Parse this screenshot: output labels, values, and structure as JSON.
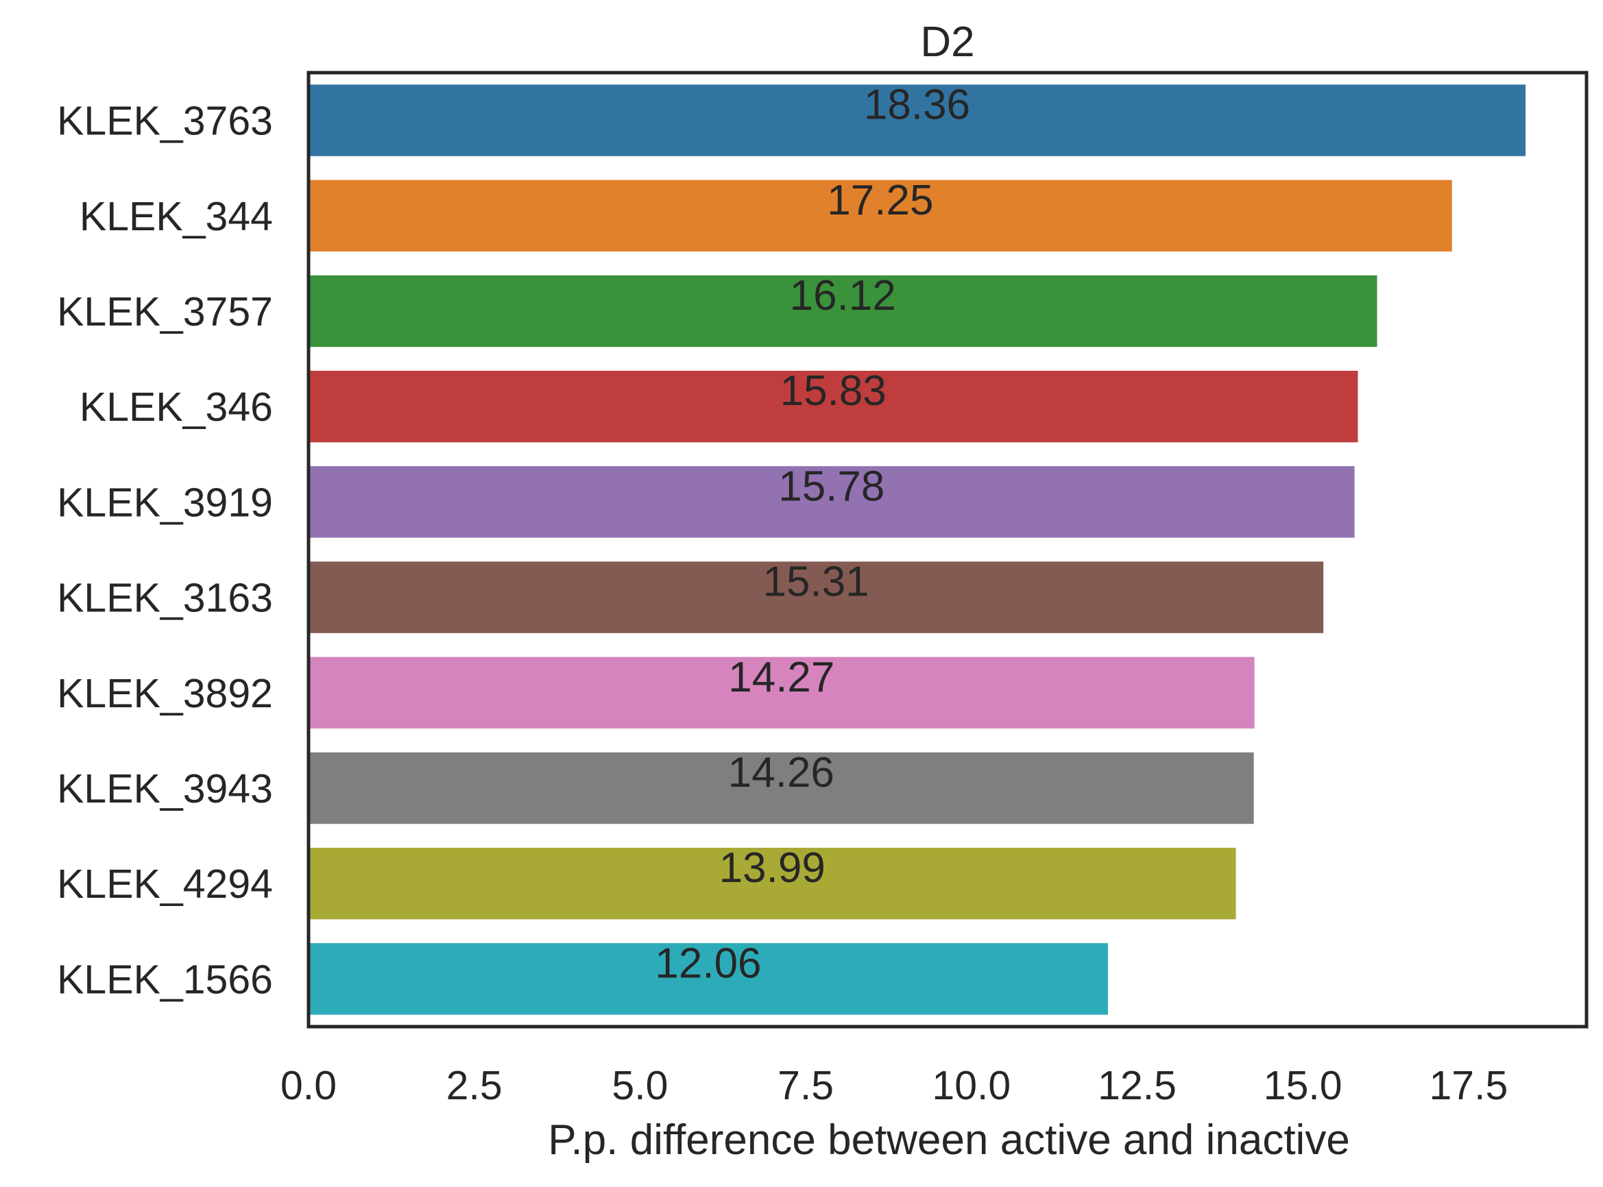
{
  "chart_data": {
    "type": "bar",
    "orientation": "horizontal",
    "title": "D2",
    "xlabel": "P.p. difference between active and inactive",
    "ylabel": "",
    "categories": [
      "KLEK_3763",
      "KLEK_344",
      "KLEK_3757",
      "KLEK_346",
      "KLEK_3919",
      "KLEK_3163",
      "KLEK_3892",
      "KLEK_3943",
      "KLEK_4294",
      "KLEK_1566"
    ],
    "values": [
      18.36,
      17.25,
      16.12,
      15.83,
      15.78,
      15.31,
      14.27,
      14.26,
      13.99,
      12.06
    ],
    "value_labels": [
      "18.36",
      "17.25",
      "16.12",
      "15.83",
      "15.78",
      "15.31",
      "14.27",
      "14.26",
      "13.99",
      "12.06"
    ],
    "colors": [
      "#3274a1",
      "#e1812c",
      "#3a923a",
      "#c03d3e",
      "#9372b2",
      "#845b53",
      "#d684bd",
      "#7f7f7f",
      "#a9aa35",
      "#2eabb8"
    ],
    "xlim": [
      0,
      19.28
    ],
    "xticks": [
      0.0,
      2.5,
      5.0,
      7.5,
      10.0,
      12.5,
      15.0,
      17.5
    ],
    "xtick_labels": [
      "0.0",
      "2.5",
      "5.0",
      "7.5",
      "10.0",
      "12.5",
      "15.0",
      "17.5"
    ],
    "grid": false,
    "legend": "none"
  }
}
